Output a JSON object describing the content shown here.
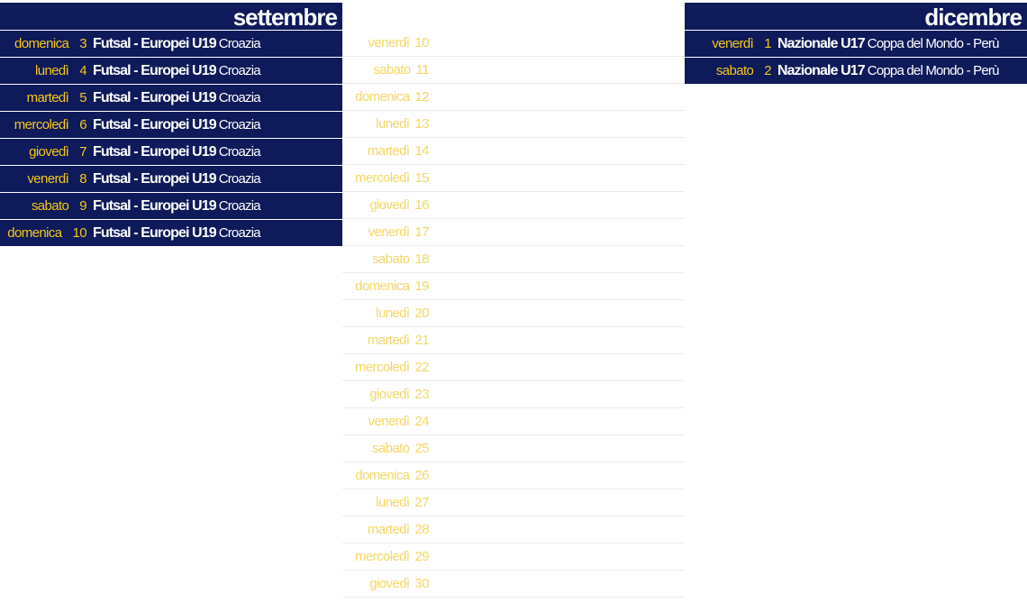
{
  "september": {
    "title": "settembre",
    "rows": [
      {
        "weekday": "domenica",
        "day": "3",
        "name": "Futsal - Europei U19",
        "detail": "Croazia"
      },
      {
        "weekday": "lunedì",
        "day": "4",
        "name": "Futsal - Europei U19",
        "detail": "Croazia"
      },
      {
        "weekday": "martedì",
        "day": "5",
        "name": "Futsal - Europei U19",
        "detail": "Croazia"
      },
      {
        "weekday": "mercoledì",
        "day": "6",
        "name": "Futsal - Europei U19",
        "detail": "Croazia"
      },
      {
        "weekday": "giovedì",
        "day": "7",
        "name": "Futsal - Europei U19",
        "detail": "Croazia"
      },
      {
        "weekday": "venerdì",
        "day": "8",
        "name": "Futsal - Europei U19",
        "detail": "Croazia"
      },
      {
        "weekday": "sabato",
        "day": "9",
        "name": "Futsal - Europei U19",
        "detail": "Croazia"
      },
      {
        "weekday": "domenica",
        "day": "10",
        "name": "Futsal - Europei U19",
        "detail": "Croazia"
      }
    ]
  },
  "november": {
    "rows": [
      {
        "weekday": "venerdì",
        "day": "10"
      },
      {
        "weekday": "sabato",
        "day": "11"
      },
      {
        "weekday": "domenica",
        "day": "12"
      },
      {
        "weekday": "lunedì",
        "day": "13"
      },
      {
        "weekday": "martedì",
        "day": "14"
      },
      {
        "weekday": "mercoledì",
        "day": "15"
      },
      {
        "weekday": "giovedì",
        "day": "16"
      },
      {
        "weekday": "venerdì",
        "day": "17"
      },
      {
        "weekday": "sabato",
        "day": "18"
      },
      {
        "weekday": "domenica",
        "day": "19"
      },
      {
        "weekday": "lunedì",
        "day": "20"
      },
      {
        "weekday": "martedì",
        "day": "21"
      },
      {
        "weekday": "mercoledì",
        "day": "22"
      },
      {
        "weekday": "giovedì",
        "day": "23"
      },
      {
        "weekday": "venerdì",
        "day": "24"
      },
      {
        "weekday": "sabato",
        "day": "25"
      },
      {
        "weekday": "domenica",
        "day": "26"
      },
      {
        "weekday": "lunedì",
        "day": "27"
      },
      {
        "weekday": "martedì",
        "day": "28"
      },
      {
        "weekday": "mercoledì",
        "day": "29"
      },
      {
        "weekday": "giovedì",
        "day": "30"
      }
    ]
  },
  "december": {
    "title": "dicembre",
    "rows": [
      {
        "weekday": "venerdì",
        "day": "1",
        "name": "Nazionale U17",
        "detail": "Coppa del Mondo - Perù"
      },
      {
        "weekday": "sabato",
        "day": "2",
        "name": "Nazionale U17",
        "detail": "Coppa del Mondo - Perù"
      }
    ]
  },
  "colors": {
    "header_bg": "#0e1a59",
    "day_text": "#f5c61c",
    "event_text": "#ffffff"
  }
}
